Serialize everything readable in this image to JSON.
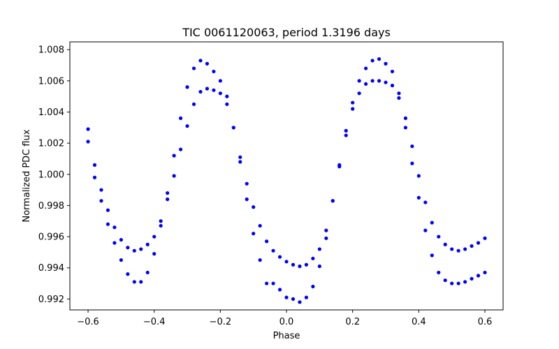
{
  "chart_data": {
    "type": "scatter",
    "title": "TIC 0061120063, period 1.3196 days",
    "xlabel": "Phase",
    "ylabel": "Normalized PDC flux",
    "xlim": [
      -0.655,
      0.655
    ],
    "ylim": [
      0.9913,
      1.0085
    ],
    "xticks": [
      -0.6,
      -0.4,
      -0.2,
      0.0,
      0.2,
      0.4,
      0.6
    ],
    "xtick_labels": [
      "−0.6",
      "−0.4",
      "−0.2",
      "0.0",
      "0.2",
      "0.4",
      "0.6"
    ],
    "yticks": [
      0.992,
      0.994,
      0.996,
      0.998,
      1.0,
      1.002,
      1.004,
      1.006,
      1.008
    ],
    "ytick_labels": [
      "0.992",
      "0.994",
      "0.996",
      "0.998",
      "1.000",
      "1.002",
      "1.004",
      "1.006",
      "1.008"
    ],
    "grid": false,
    "marker_color": "#0000ff",
    "series": [
      {
        "x": [
          -0.6,
          -0.58,
          -0.56,
          -0.54,
          -0.52,
          -0.5,
          -0.48,
          -0.46,
          -0.44,
          -0.42,
          -0.4,
          -0.38,
          -0.36,
          -0.34,
          -0.32,
          -0.3,
          -0.28,
          -0.26,
          -0.24,
          -0.22,
          -0.2,
          -0.18,
          -0.16,
          -0.14,
          -0.12,
          -0.1,
          -0.08,
          -0.06,
          -0.04,
          -0.02,
          0.0,
          0.02,
          0.04,
          0.06,
          0.08,
          0.1,
          0.12,
          0.14,
          0.16,
          0.18,
          0.2,
          0.22,
          0.24,
          0.26,
          0.28,
          0.3,
          0.32,
          0.34,
          0.36,
          0.38,
          0.4,
          0.42,
          0.44,
          0.46,
          0.48,
          0.5,
          0.52,
          0.54,
          0.56,
          0.58,
          0.6
        ],
        "y": [
          1.0021,
          0.9998,
          0.9983,
          0.9968,
          0.9956,
          0.9945,
          0.9936,
          0.9931,
          0.9931,
          0.9937,
          0.9949,
          0.9967,
          0.9988,
          1.0012,
          1.0036,
          1.0056,
          1.0068,
          1.0073,
          1.0071,
          1.0066,
          1.006,
          1.005,
          1.003,
          1.0008,
          0.9984,
          0.9962,
          0.9945,
          0.993,
          0.993,
          0.9926,
          0.9921,
          0.992,
          0.9918,
          0.9921,
          0.9928,
          0.9941,
          0.9959,
          0.9983,
          1.0006,
          1.0028,
          1.0046,
          1.006,
          1.0068,
          1.0073,
          1.0074,
          1.0071,
          1.0066,
          1.0052,
          1.003,
          1.0007,
          0.9985,
          0.9964,
          0.9948,
          0.9937,
          0.9932,
          0.993,
          0.993,
          0.9931,
          0.9933,
          0.9935,
          0.9937
        ]
      },
      {
        "x": [
          -0.6,
          -0.58,
          -0.56,
          -0.54,
          -0.52,
          -0.5,
          -0.48,
          -0.46,
          -0.44,
          -0.42,
          -0.4,
          -0.38,
          -0.36,
          -0.34,
          -0.32,
          -0.3,
          -0.28,
          -0.26,
          -0.24,
          -0.22,
          -0.2,
          -0.18,
          -0.16,
          -0.14,
          -0.12,
          -0.1,
          -0.08,
          -0.06,
          -0.04,
          -0.02,
          0.0,
          0.02,
          0.04,
          0.06,
          0.08,
          0.1,
          0.12,
          0.14,
          0.16,
          0.18,
          0.2,
          0.22,
          0.24,
          0.26,
          0.28,
          0.3,
          0.32,
          0.34,
          0.36,
          0.38,
          0.4,
          0.42,
          0.44,
          0.46,
          0.48,
          0.5,
          0.52,
          0.54,
          0.56,
          0.58,
          0.6
        ],
        "y": [
          1.0029,
          1.0006,
          0.999,
          0.9977,
          0.9966,
          0.9958,
          0.9953,
          0.9951,
          0.9952,
          0.9955,
          0.996,
          0.997,
          0.9984,
          0.9999,
          1.0016,
          1.0031,
          1.0045,
          1.0053,
          1.0055,
          1.0054,
          1.0052,
          1.0045,
          1.003,
          1.0011,
          0.9994,
          0.9979,
          0.9967,
          0.9957,
          0.9951,
          0.9947,
          0.9944,
          0.9942,
          0.9941,
          0.9942,
          0.9946,
          0.9952,
          0.9964,
          0.9983,
          1.0005,
          1.0025,
          1.0042,
          1.0052,
          1.0058,
          1.006,
          1.006,
          1.0059,
          1.0057,
          1.0049,
          1.0036,
          1.0018,
          0.9999,
          0.9982,
          0.9969,
          0.996,
          0.9955,
          0.9952,
          0.9951,
          0.9952,
          0.9954,
          0.9956,
          0.9959
        ]
      }
    ]
  }
}
